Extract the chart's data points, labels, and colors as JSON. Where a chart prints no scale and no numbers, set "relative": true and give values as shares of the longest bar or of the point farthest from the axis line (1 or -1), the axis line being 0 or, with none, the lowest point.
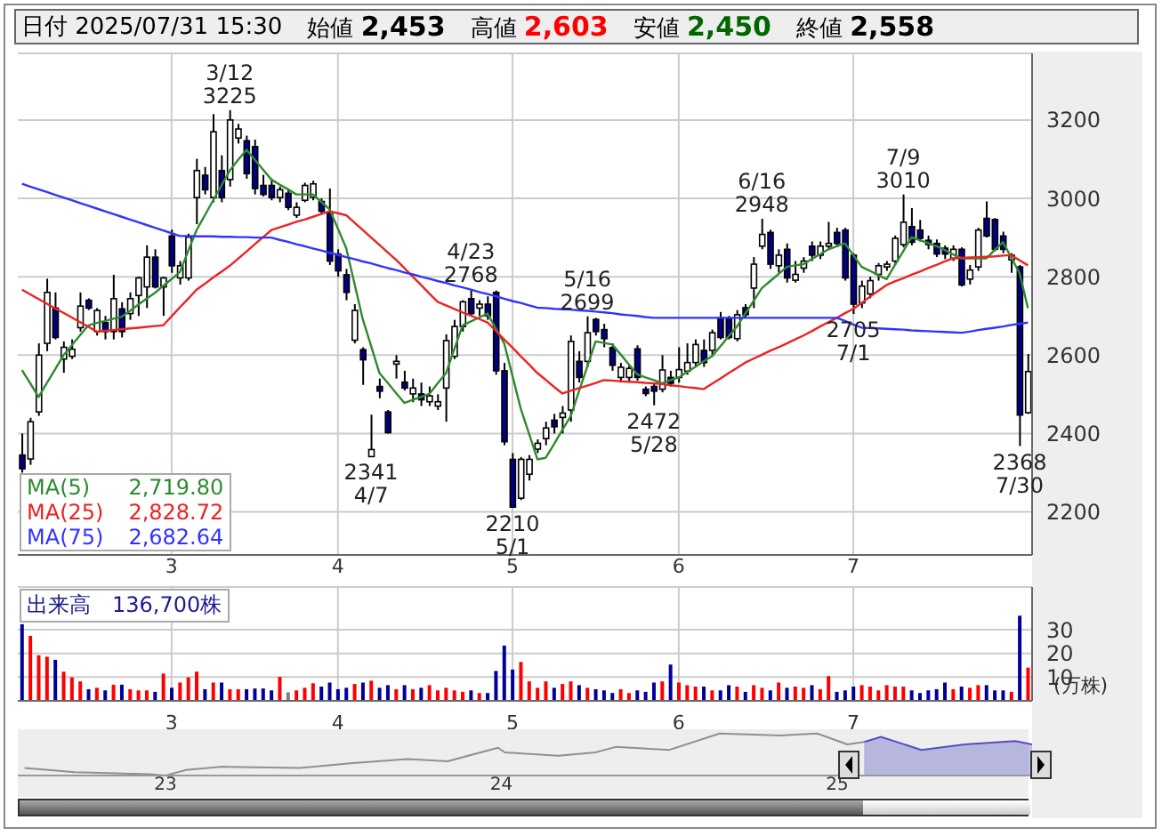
{
  "chart_data": [
    {
      "type": "candlestick",
      "legend": "bottom left",
      "grid": true,
      "annotations": [
        "日付 2025/07/31 15:30",
        "始値 2,453",
        "高値 2,603",
        "安値 2,450",
        "終値 2,558",
        {
          "text": "3/12 3225",
          "y": 3225
        },
        {
          "text": "2341 4/7",
          "y": 2341
        },
        {
          "text": "4/23 2768",
          "y": 2768
        },
        {
          "text": "2210 5/1",
          "y": 2210
        },
        {
          "text": "5/16 2699",
          "y": 2699
        },
        {
          "text": "2472 5/28",
          "y": 2472
        },
        {
          "text": "6/16 2948",
          "y": 2948
        },
        {
          "text": "2705 7/1",
          "y": 2705
        },
        {
          "text": "7/9 3010",
          "y": 3010
        },
        {
          "text": "2368 7/30",
          "y": 2368
        }
      ],
      "categories": [
        null,
        null,
        null,
        null,
        null,
        null,
        null,
        null,
        null,
        null,
        null,
        null,
        null,
        null,
        null,
        null,
        null,
        null,
        "3",
        null,
        null,
        null,
        null,
        null,
        null,
        null,
        null,
        null,
        null,
        null,
        null,
        null,
        null,
        null,
        null,
        null,
        null,
        null,
        "4",
        null,
        null,
        null,
        null,
        null,
        null,
        null,
        null,
        null,
        null,
        null,
        null,
        null,
        null,
        null,
        null,
        null,
        null,
        null,
        null,
        "5",
        null,
        null,
        null,
        null,
        null,
        null,
        null,
        null,
        null,
        null,
        null,
        null,
        null,
        null,
        null,
        null,
        null,
        null,
        null,
        "6",
        null,
        null,
        null,
        null,
        null,
        null,
        null,
        null,
        null,
        null,
        null,
        null,
        null,
        null,
        null,
        null,
        null,
        null,
        null,
        null,
        "7",
        null,
        null,
        null,
        null,
        null,
        null,
        null,
        null,
        null,
        null,
        null,
        null,
        null,
        null,
        null,
        null,
        null,
        null,
        null,
        null,
        null
      ],
      "ylim": [
        2090,
        3370
      ],
      "yticks": [
        2200,
        2400,
        2600,
        2800,
        3000,
        3200
      ],
      "ohlc": [
        [
          2345,
          2400,
          2300,
          2310
        ],
        [
          2335,
          2440,
          2320,
          2430
        ],
        [
          2455,
          2630,
          2445,
          2600
        ],
        [
          2630,
          2795,
          2610,
          2760
        ],
        [
          2720,
          2760,
          2640,
          2645
        ],
        [
          2590,
          2635,
          2555,
          2620
        ],
        [
          2597,
          2640,
          2590,
          2615
        ],
        [
          2670,
          2760,
          2660,
          2725
        ],
        [
          2740,
          2745,
          2715,
          2720
        ],
        [
          2660,
          2720,
          2650,
          2714
        ],
        [
          2683,
          2700,
          2640,
          2660
        ],
        [
          2660,
          2805,
          2640,
          2744
        ],
        [
          2718,
          2735,
          2645,
          2660
        ],
        [
          2706,
          2760,
          2690,
          2744
        ],
        [
          2752,
          2800,
          2700,
          2797
        ],
        [
          2774,
          2880,
          2720,
          2850
        ],
        [
          2850,
          2870,
          2770,
          2774
        ],
        [
          2774,
          2800,
          2700,
          2797
        ],
        [
          2904,
          2920,
          2810,
          2828
        ],
        [
          2797,
          2840,
          2780,
          2828
        ],
        [
          2797,
          2910,
          2790,
          2901
        ],
        [
          3002,
          3101,
          2934,
          3071
        ],
        [
          3059,
          3080,
          3010,
          3022
        ],
        [
          3002,
          3215,
          2990,
          3170
        ],
        [
          3071,
          3110,
          2990,
          3002
        ],
        [
          3048,
          3225,
          3030,
          3200
        ],
        [
          3154,
          3190,
          3140,
          3177
        ],
        [
          3147,
          3160,
          3050,
          3063
        ],
        [
          3132,
          3150,
          3010,
          3025
        ],
        [
          3033,
          3060,
          3005,
          3010
        ],
        [
          3033,
          3050,
          2995,
          3002
        ],
        [
          3002,
          3030,
          2990,
          3022
        ],
        [
          3013,
          3025,
          2970,
          2977
        ],
        [
          2957,
          2990,
          2950,
          2977
        ],
        [
          2995,
          3040,
          2990,
          3033
        ],
        [
          3003,
          3045,
          2995,
          3037
        ],
        [
          2992,
          3000,
          2960,
          2967
        ],
        [
          2964,
          3025,
          2830,
          2840
        ],
        [
          2858,
          2870,
          2800,
          2815
        ],
        [
          2805,
          2820,
          2740,
          2760
        ],
        [
          2638,
          2730,
          2630,
          2714
        ],
        [
          2614,
          2620,
          2524,
          2588
        ],
        [
          2341,
          2448,
          2341,
          2359
        ],
        [
          2520,
          2540,
          2490,
          2508
        ],
        [
          2455,
          2460,
          2400,
          2402
        ],
        [
          2577,
          2600,
          2540,
          2584
        ],
        [
          2531,
          2560,
          2510,
          2516
        ],
        [
          2501,
          2540,
          2480,
          2516
        ],
        [
          2501,
          2530,
          2470,
          2486
        ],
        [
          2481,
          2520,
          2470,
          2496
        ],
        [
          2470,
          2500,
          2460,
          2481
        ],
        [
          2516,
          2653,
          2430,
          2637
        ],
        [
          2597,
          2690,
          2590,
          2673
        ],
        [
          2673,
          2740,
          2660,
          2736
        ],
        [
          2744,
          2768,
          2700,
          2706
        ],
        [
          2720,
          2740,
          2700,
          2730
        ],
        [
          2730,
          2750,
          2690,
          2700
        ],
        [
          2760,
          2765,
          2550,
          2560
        ],
        [
          2560,
          2580,
          2370,
          2379
        ],
        [
          2334,
          2350,
          2210,
          2212
        ],
        [
          2235,
          2340,
          2230,
          2334
        ],
        [
          2296,
          2345,
          2280,
          2334
        ],
        [
          2360,
          2385,
          2350,
          2375
        ],
        [
          2387,
          2430,
          2370,
          2414
        ],
        [
          2434,
          2450,
          2400,
          2417
        ],
        [
          2441,
          2470,
          2400,
          2452
        ],
        [
          2460,
          2650,
          2430,
          2635
        ],
        [
          2584,
          2610,
          2530,
          2543
        ],
        [
          2584,
          2699,
          2570,
          2657
        ],
        [
          2691,
          2695,
          2650,
          2660
        ],
        [
          2665,
          2680,
          2620,
          2642
        ],
        [
          2619,
          2630,
          2560,
          2574
        ],
        [
          2543,
          2580,
          2530,
          2569
        ],
        [
          2543,
          2575,
          2530,
          2566
        ],
        [
          2616,
          2625,
          2535,
          2543
        ],
        [
          2513,
          2520,
          2495,
          2502
        ],
        [
          2520,
          2530,
          2472,
          2508
        ],
        [
          2513,
          2600,
          2505,
          2562
        ],
        [
          2543,
          2560,
          2520,
          2528
        ],
        [
          2543,
          2620,
          2530,
          2563
        ],
        [
          2559,
          2630,
          2550,
          2581
        ],
        [
          2581,
          2640,
          2570,
          2627
        ],
        [
          2612,
          2640,
          2570,
          2581
        ],
        [
          2612,
          2665,
          2600,
          2657
        ],
        [
          2695,
          2710,
          2640,
          2645
        ],
        [
          2692,
          2700,
          2640,
          2645
        ],
        [
          2642,
          2715,
          2635,
          2703
        ],
        [
          2721,
          2730,
          2695,
          2703
        ],
        [
          2771,
          2850,
          2720,
          2832
        ],
        [
          2878,
          2948,
          2870,
          2908
        ],
        [
          2913,
          2920,
          2820,
          2832
        ],
        [
          2828,
          2870,
          2810,
          2855
        ],
        [
          2870,
          2885,
          2785,
          2797
        ],
        [
          2791,
          2840,
          2785,
          2806
        ],
        [
          2822,
          2850,
          2810,
          2840
        ],
        [
          2878,
          2890,
          2840,
          2855
        ],
        [
          2855,
          2890,
          2845,
          2878
        ],
        [
          2878,
          2940,
          2870,
          2885
        ],
        [
          2913,
          2925,
          2880,
          2885
        ],
        [
          2919,
          2925,
          2790,
          2797
        ],
        [
          2855,
          2860,
          2705,
          2730
        ],
        [
          2733,
          2790,
          2720,
          2776
        ],
        [
          2756,
          2800,
          2745,
          2790
        ],
        [
          2806,
          2835,
          2790,
          2828
        ],
        [
          2825,
          2840,
          2815,
          2832
        ],
        [
          2840,
          2905,
          2830,
          2898
        ],
        [
          2882,
          3010,
          2875,
          2939
        ],
        [
          2928,
          2975,
          2880,
          2888
        ],
        [
          2919,
          2945,
          2890,
          2898
        ],
        [
          2893,
          2905,
          2870,
          2882
        ],
        [
          2885,
          2895,
          2850,
          2858
        ],
        [
          2873,
          2880,
          2845,
          2858
        ],
        [
          2847,
          2880,
          2840,
          2870
        ],
        [
          2870,
          2875,
          2775,
          2779
        ],
        [
          2794,
          2830,
          2780,
          2817
        ],
        [
          2825,
          2925,
          2815,
          2919
        ],
        [
          2949,
          2992,
          2900,
          2904
        ],
        [
          2946,
          2950,
          2865,
          2870
        ],
        [
          2904,
          2915,
          2860,
          2870
        ],
        [
          2843,
          2860,
          2810,
          2855
        ],
        [
          2825,
          2830,
          2368,
          2447
        ],
        [
          2453,
          2603,
          2450,
          2558
        ]
      ],
      "colors": [
        "#000080",
        "#ffffff",
        "#ffffff",
        "#ffffff",
        "#000080",
        "#ffffff",
        "#ffffff",
        "#ffffff",
        "#000080",
        "#ffffff",
        "#000080",
        "#ffffff",
        "#000080",
        "#ffffff",
        "#ffffff",
        "#ffffff",
        "#000080",
        "#ffffff",
        "#000080",
        "#ffffff",
        "#ffffff",
        "#ffffff",
        "#000080",
        "#ffffff",
        "#000080",
        "#ffffff",
        "#ffffff",
        "#000080",
        "#000080",
        "#000080",
        "#000080",
        "#ffffff",
        "#000080",
        "#ffffff",
        "#ffffff",
        "#ffffff",
        "#000080",
        "#000080",
        "#000080",
        "#000080",
        "#ffffff",
        "#000080",
        "#ffffff",
        "#000080",
        "#000080",
        "#ffffff",
        "#000080",
        "#ffffff",
        "#000080",
        "#ffffff",
        "#ffffff",
        "#ffffff",
        "#ffffff",
        "#ffffff",
        "#000080",
        "#ffffff",
        "#000080",
        "#000080",
        "#000080",
        "#000080",
        "#ffffff",
        "#ffffff",
        "#ffffff",
        "#ffffff",
        "#000080",
        "#ffffff",
        "#ffffff",
        "#000080",
        "#ffffff",
        "#000080",
        "#000080",
        "#000080",
        "#ffffff",
        "#ffffff",
        "#000080",
        "#000080",
        "#000080",
        "#ffffff",
        "#000080",
        "#ffffff",
        "#ffffff",
        "#ffffff",
        "#000080",
        "#ffffff",
        "#000080",
        "#000080",
        "#ffffff",
        "#000080",
        "#ffffff",
        "#ffffff",
        "#000080",
        "#ffffff",
        "#000080",
        "#ffffff",
        "#ffffff",
        "#000080",
        "#ffffff",
        "#ffffff",
        "#000080",
        "#000080",
        "#000080",
        "#ffffff",
        "#ffffff",
        "#ffffff",
        "#ffffff",
        "#ffffff",
        "#ffffff",
        "#000080",
        "#000080",
        "#000080",
        "#000080",
        "#000080",
        "#ffffff",
        "#000080",
        "#ffffff",
        "#ffffff",
        "#000080",
        "#000080",
        "#000080",
        "#ffffff",
        "#000080",
        "#ffffff"
      ],
      "series": [
        {
          "name": "MA(5) 2,719.80",
          "type": "line",
          "color": "#2e8b2e",
          "values": [
            2562,
            2528,
            2493,
            2529,
            2564,
            2600,
            2625,
            2651,
            2676,
            2682,
            2687,
            2693,
            2698,
            2713,
            2729,
            2744,
            2759,
            2777,
            2794,
            2812,
            2866,
            2919,
            2957,
            2995,
            3033,
            3071,
            3098,
            3124,
            3099,
            3073,
            3048,
            3035,
            3023,
            3010,
            3010,
            3010,
            2991,
            2972,
            2923,
            2873,
            2782,
            2691,
            2623,
            2554,
            2529,
            2503,
            2478,
            2486,
            2493,
            2501,
            2528,
            2554,
            2615,
            2676,
            2686,
            2696,
            2706,
            2668,
            2630,
            2547,
            2463,
            2399,
            2334,
            2338,
            2373,
            2409,
            2444,
            2508,
            2571,
            2635,
            2631,
            2627,
            2602,
            2576,
            2551,
            2543,
            2536,
            2528,
            2536,
            2543,
            2557,
            2570,
            2584,
            2597,
            2622,
            2648,
            2673,
            2706,
            2738,
            2771,
            2789,
            2807,
            2825,
            2829,
            2832,
            2845,
            2857,
            2870,
            2878,
            2885,
            2855,
            2825,
            2815,
            2804,
            2794,
            2830,
            2865,
            2901,
            2893,
            2886,
            2878,
            2868,
            2857,
            2847,
            2847,
            2847,
            2847,
            2868,
            2888,
            2849,
            2809,
            2720
          ]
        },
        {
          "name": "MA(25) 2,828.72",
          "type": "line",
          "color": "#ee2222",
          "values": [
            2767,
            2755,
            2743,
            2731,
            2719,
            2708,
            2696,
            2684,
            2672,
            2660,
            2662,
            2664,
            2666,
            2668,
            2670,
            2672,
            2674,
            2676,
            2699,
            2722,
            2744,
            2767,
            2782,
            2798,
            2813,
            2828,
            2846,
            2864,
            2883,
            2901,
            2919,
            2926,
            2933,
            2940,
            2946,
            2953,
            2960,
            2967,
            2962,
            2957,
            2938,
            2919,
            2900,
            2881,
            2862,
            2843,
            2822,
            2800,
            2779,
            2757,
            2736,
            2727,
            2718,
            2709,
            2701,
            2692,
            2683,
            2662,
            2640,
            2619,
            2597,
            2576,
            2554,
            2537,
            2519,
            2502,
            2509,
            2516,
            2522,
            2529,
            2536,
            2535,
            2533,
            2532,
            2531,
            2529,
            2528,
            2526,
            2523,
            2521,
            2518,
            2516,
            2513,
            2527,
            2540,
            2554,
            2567,
            2581,
            2591,
            2601,
            2611,
            2620,
            2630,
            2640,
            2650,
            2661,
            2673,
            2684,
            2695,
            2707,
            2718,
            2733,
            2749,
            2764,
            2779,
            2788,
            2796,
            2805,
            2813,
            2822,
            2830,
            2839,
            2847,
            2848,
            2849,
            2850,
            2851,
            2852,
            2854,
            2855,
            2842,
            2829
          ]
        },
        {
          "name": "MA(75) 2,682.64",
          "type": "line",
          "color": "#3333ff",
          "values": [
            3037,
            3030,
            3023,
            3016,
            3009,
            3002,
            2995,
            2988,
            2981,
            2974,
            2967,
            2960,
            2953,
            2946,
            2939,
            2932,
            2925,
            2918,
            2911,
            2904,
            2904,
            2903,
            2903,
            2903,
            2902,
            2902,
            2901,
            2901,
            2900,
            2900,
            2900,
            2894,
            2889,
            2883,
            2878,
            2872,
            2867,
            2861,
            2856,
            2850,
            2845,
            2839,
            2834,
            2828,
            2822,
            2817,
            2811,
            2806,
            2800,
            2795,
            2789,
            2784,
            2778,
            2773,
            2767,
            2761,
            2756,
            2750,
            2744,
            2738,
            2733,
            2727,
            2721,
            2720,
            2718,
            2717,
            2716,
            2714,
            2713,
            2711,
            2709,
            2707,
            2704,
            2702,
            2700,
            2697,
            2695,
            2695,
            2695,
            2695,
            2695,
            2695,
            2695,
            2695,
            2695,
            2695,
            2695,
            2695,
            2695,
            2695,
            2695,
            2695,
            2695,
            2695,
            2695,
            2695,
            2695,
            2695,
            2695,
            2687,
            2678,
            2670,
            2669,
            2668,
            2667,
            2666,
            2665,
            2663,
            2662,
            2661,
            2660,
            2659,
            2658,
            2657,
            2660,
            2664,
            2667,
            2670,
            2673,
            2677,
            2680,
            2683
          ]
        }
      ]
    },
    {
      "type": "bar",
      "grid": true,
      "ylabel": "(万株)",
      "annotations": [
        "出来高　136,700株"
      ],
      "categories": [
        null,
        null,
        null,
        null,
        null,
        null,
        null,
        null,
        null,
        null,
        null,
        null,
        null,
        null,
        null,
        null,
        null,
        null,
        "3",
        null,
        null,
        null,
        null,
        null,
        null,
        null,
        null,
        null,
        null,
        null,
        null,
        null,
        null,
        null,
        null,
        null,
        null,
        null,
        "4",
        null,
        null,
        null,
        null,
        null,
        null,
        null,
        null,
        null,
        null,
        null,
        null,
        null,
        null,
        null,
        null,
        null,
        null,
        null,
        null,
        "5",
        null,
        null,
        null,
        null,
        null,
        null,
        null,
        null,
        null,
        null,
        null,
        null,
        null,
        null,
        null,
        null,
        null,
        null,
        null,
        "6",
        null,
        null,
        null,
        null,
        null,
        null,
        null,
        null,
        null,
        null,
        null,
        null,
        null,
        null,
        null,
        null,
        null,
        null,
        null,
        null,
        "7",
        null,
        null,
        null,
        null,
        null,
        null,
        null,
        null,
        null,
        null,
        null,
        null,
        null,
        null,
        null,
        null,
        null,
        null,
        null,
        null,
        null
      ],
      "ylim": [
        0,
        48
      ],
      "yticks": [
        10,
        20,
        30
      ],
      "values": [
        32.3,
        27.4,
        19.2,
        18.6,
        17.3,
        12.3,
        9.9,
        8.2,
        4.9,
        5.5,
        4.4,
        6.8,
        6.8,
        4.9,
        4.4,
        4.4,
        3.8,
        11.5,
        5.5,
        7.7,
        9.9,
        12.3,
        4.9,
        7.7,
        7.7,
        4.9,
        4.9,
        4.9,
        5.2,
        5.2,
        4.4,
        10.1,
        3.6,
        4.4,
        5.5,
        7.4,
        6.0,
        7.7,
        4.9,
        5.5,
        7.1,
        7.7,
        8.5,
        5.5,
        6.6,
        4.9,
        6.6,
        4.9,
        5.5,
        6.6,
        4.4,
        5.5,
        4.4,
        3.8,
        4.4,
        3.3,
        3.3,
        12.6,
        23.3,
        13.2,
        16.4,
        8.2,
        5.5,
        8.2,
        5.5,
        7.1,
        8.2,
        6.6,
        5.5,
        4.9,
        4.4,
        3.3,
        4.9,
        3.3,
        4.4,
        3.8,
        7.7,
        8.2,
        15.3,
        7.7,
        6.6,
        6.0,
        6.0,
        4.4,
        4.4,
        6.6,
        6.0,
        3.8,
        6.6,
        5.5,
        4.4,
        7.7,
        5.5,
        6.0,
        5.5,
        6.6,
        4.9,
        10.4,
        3.8,
        4.4,
        6.0,
        6.6,
        6.0,
        4.4,
        6.6,
        6.0,
        6.0,
        4.4,
        3.3,
        4.4,
        4.9,
        7.7,
        4.9,
        6.0,
        5.5,
        6.6,
        6.6,
        4.4,
        4.4,
        3.8,
        35.9,
        14.0
      ],
      "colors": [
        "#000099",
        "#ff0000",
        "#ff0000",
        "#ff0000",
        "#000099",
        "#ff0000",
        "#ff0000",
        "#ff0000",
        "#000099",
        "#ff0000",
        "#000099",
        "#ff0000",
        "#000099",
        "#ff0000",
        "#ff0000",
        "#ff0000",
        "#000099",
        "#ff0000",
        "#000099",
        "#ff0000",
        "#ff0000",
        "#ff0000",
        "#000099",
        "#ff0000",
        "#000099",
        "#ff0000",
        "#ff0000",
        "#000099",
        "#000099",
        "#000099",
        "#000099",
        "#ff0000",
        "#808080",
        "#ff0000",
        "#ff0000",
        "#ff0000",
        "#000099",
        "#000099",
        "#000099",
        "#000099",
        "#ff0000",
        "#000099",
        "#ff0000",
        "#000099",
        "#000099",
        "#ff0000",
        "#000099",
        "#ff0000",
        "#000099",
        "#ff0000",
        "#ff0000",
        "#ff0000",
        "#ff0000",
        "#ff0000",
        "#000099",
        "#ff0000",
        "#000099",
        "#000099",
        "#000099",
        "#000099",
        "#ff0000",
        "#ff0000",
        "#ff0000",
        "#ff0000",
        "#000099",
        "#ff0000",
        "#ff0000",
        "#000099",
        "#ff0000",
        "#000099",
        "#000099",
        "#000099",
        "#ff0000",
        "#ff0000",
        "#000099",
        "#000099",
        "#000099",
        "#ff0000",
        "#000099",
        "#ff0000",
        "#ff0000",
        "#ff0000",
        "#000099",
        "#ff0000",
        "#000099",
        "#000099",
        "#ff0000",
        "#000099",
        "#ff0000",
        "#ff0000",
        "#000099",
        "#ff0000",
        "#000099",
        "#ff0000",
        "#ff0000",
        "#000099",
        "#ff0000",
        "#ff0000",
        "#000099",
        "#000099",
        "#000099",
        "#ff0000",
        "#ff0000",
        "#ff0000",
        "#ff0000",
        "#ff0000",
        "#ff0000",
        "#000099",
        "#000099",
        "#000099",
        "#000099",
        "#000099",
        "#ff0000",
        "#000099",
        "#ff0000",
        "#ff0000",
        "#000099",
        "#000099",
        "#000099",
        "#ff0000",
        "#000099",
        "#ff0000"
      ]
    },
    {
      "type": "line",
      "relative": true,
      "xlim": [
        2022.56,
        2025.58
      ],
      "xticks": [
        {
          "value": 2023,
          "label": "23"
        },
        {
          "value": 2024,
          "label": "24"
        },
        {
          "value": 2025,
          "label": "25"
        }
      ],
      "series": [
        {
          "type": "line",
          "color": "#909090",
          "x": [
            2022.58,
            2022.73,
            2022.95,
            2023.0,
            2023.06,
            2023.17,
            2023.4,
            2023.55,
            2023.72,
            2023.84,
            2023.99,
            2024.01,
            2024.17,
            2024.28,
            2024.34,
            2024.5,
            2024.65,
            2024.83,
            2024.94,
            2025.03,
            2025.08
          ],
          "values": [
            0.18,
            0.08,
            0.03,
            0,
            0.13,
            0.21,
            0.18,
            0.29,
            0.39,
            0.34,
            0.66,
            0.55,
            0.47,
            0.55,
            0.68,
            0.61,
            1,
            0.95,
            1,
            0.74,
            0.8
          ]
        },
        {
          "type": "area",
          "color": "#5050c0",
          "x": [
            2025.08,
            2025.13,
            2025.25,
            2025.38,
            2025.53,
            2025.58
          ],
          "values": [
            0.8,
            0.92,
            0.61,
            0.74,
            0.82,
            0.74
          ]
        }
      ]
    }
  ]
}
